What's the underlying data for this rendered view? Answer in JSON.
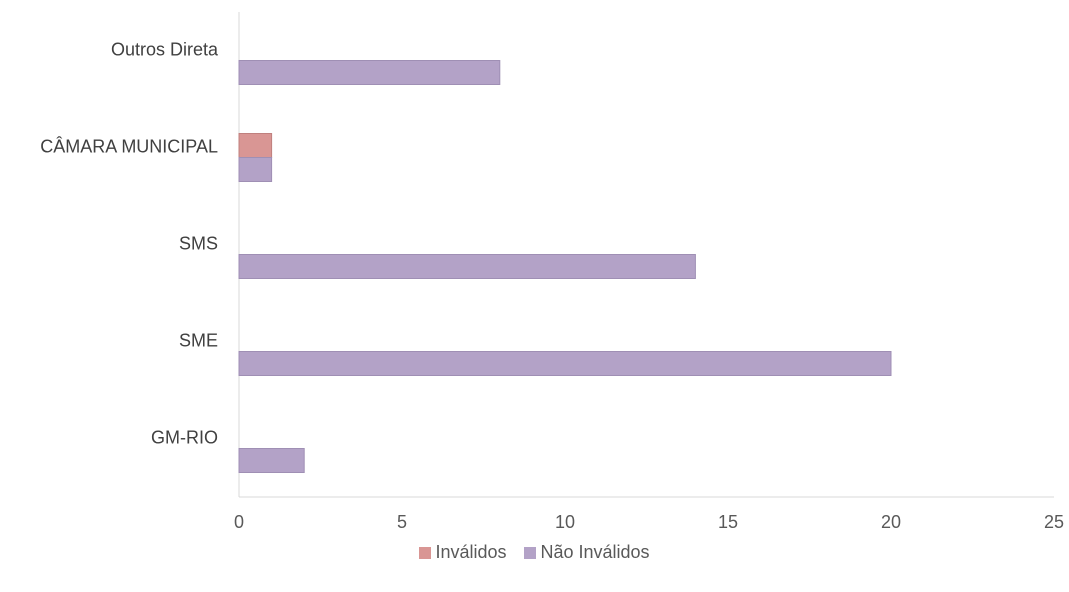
{
  "chart_data": {
    "type": "bar",
    "orientation": "horizontal",
    "categories": [
      "GM-RIO",
      "SME",
      "SMS",
      "CÂMARA MUNICIPAL",
      "Outros Direta"
    ],
    "series": [
      {
        "name": "Inválidos",
        "color": "#d99694",
        "values": [
          0,
          0,
          0,
          1,
          0
        ]
      },
      {
        "name": "Não Inválidos",
        "color": "#b3a2c7",
        "values": [
          2,
          20,
          14,
          1,
          8
        ]
      }
    ],
    "xlim": [
      0,
      25
    ],
    "xticks": [
      0,
      5,
      10,
      15,
      20,
      25
    ],
    "grid": false,
    "legend_position": "bottom"
  }
}
